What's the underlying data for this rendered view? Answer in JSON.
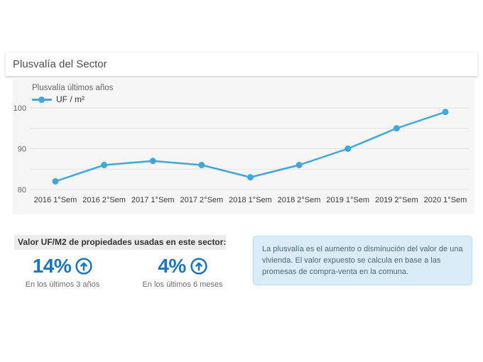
{
  "header": {
    "title": "Plusvalía del Sector"
  },
  "chart_data": {
    "type": "line",
    "title": "Plusvalía últimos años",
    "series_name": "UF / m²",
    "categories": [
      "2016 1°Sem",
      "2016 2°Sem",
      "2017 1°Sem",
      "2017 2°Sem",
      "2018 1°Sem",
      "2018 2°Sem",
      "2019 1°Sem",
      "2019 2°Sem",
      "2020 1°Sem"
    ],
    "values": [
      82,
      86,
      87,
      86,
      83,
      86,
      90,
      95,
      99
    ],
    "xlabel": "",
    "ylabel": "",
    "ylim": [
      80,
      100
    ],
    "ytick_labels": [
      80,
      90,
      100
    ],
    "gridline_step": 5,
    "grid": true,
    "legend_position": "top-left",
    "line_color": "#41a6d9"
  },
  "stats": {
    "header": "Valor UF/M2 de propiedades usadas en este sector:",
    "items": [
      {
        "value": "14%",
        "label": "En los últimos 3 años",
        "trend": "up"
      },
      {
        "value": "4%",
        "label": "En los últimos 6 meses",
        "trend": "up"
      }
    ]
  },
  "info_box": {
    "text": "La plusvalía es el aumento o disminución del valor de una vivienda. El valor expuesto se calcula en base a las promesas de compra-venta en la comuna."
  },
  "colors": {
    "line_blue": "#41a6d9",
    "accent_blue": "#1b75bb",
    "panel_bg": "#f6f6f6",
    "info_bg": "#d9ecf8",
    "info_border": "#badcee",
    "stats_bar_bg": "#ececec"
  }
}
